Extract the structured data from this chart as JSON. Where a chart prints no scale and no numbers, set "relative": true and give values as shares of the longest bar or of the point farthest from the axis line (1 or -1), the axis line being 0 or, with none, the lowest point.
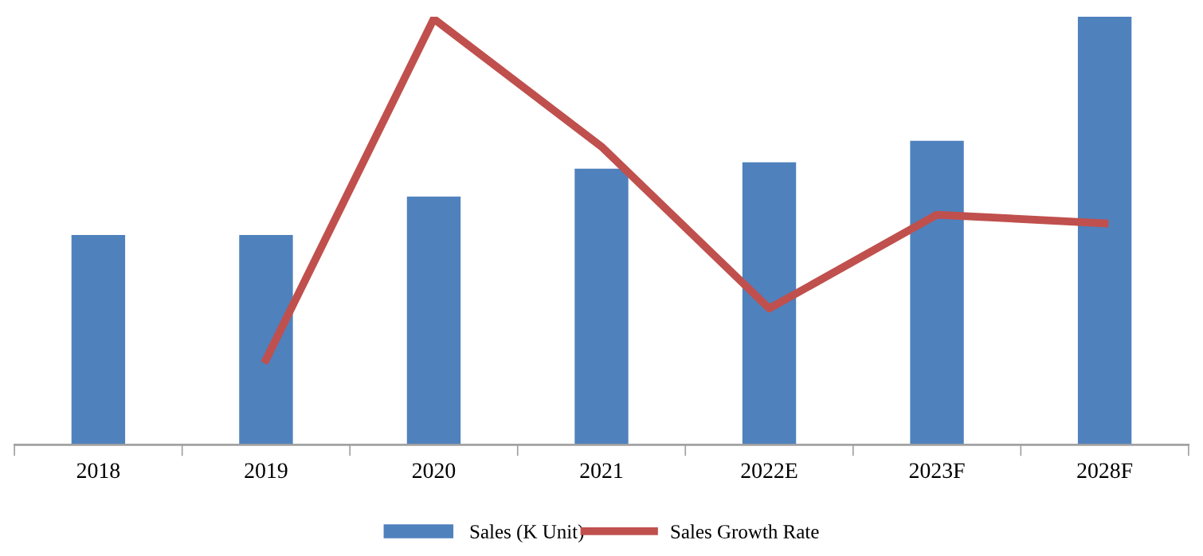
{
  "chart_data": {
    "type": "bar",
    "relative": true,
    "categories": [
      "2018",
      "2019",
      "2020",
      "2021",
      "2022E",
      "2023F",
      "2028F"
    ],
    "series": [
      {
        "name": "Sales (K Unit)",
        "color": "#4f81bd",
        "values": [
          0.49,
          0.49,
          0.58,
          0.645,
          0.66,
          0.71,
          1
        ]
      },
      {
        "name": "Sales Growth Rate",
        "type": "line",
        "axis": "y2",
        "color": "#c0504d",
        "values": [
          null,
          0.2,
          1,
          0.7,
          0.32,
          0.54,
          0.52
        ]
      }
    ],
    "legend": "bottom",
    "grid": false
  }
}
